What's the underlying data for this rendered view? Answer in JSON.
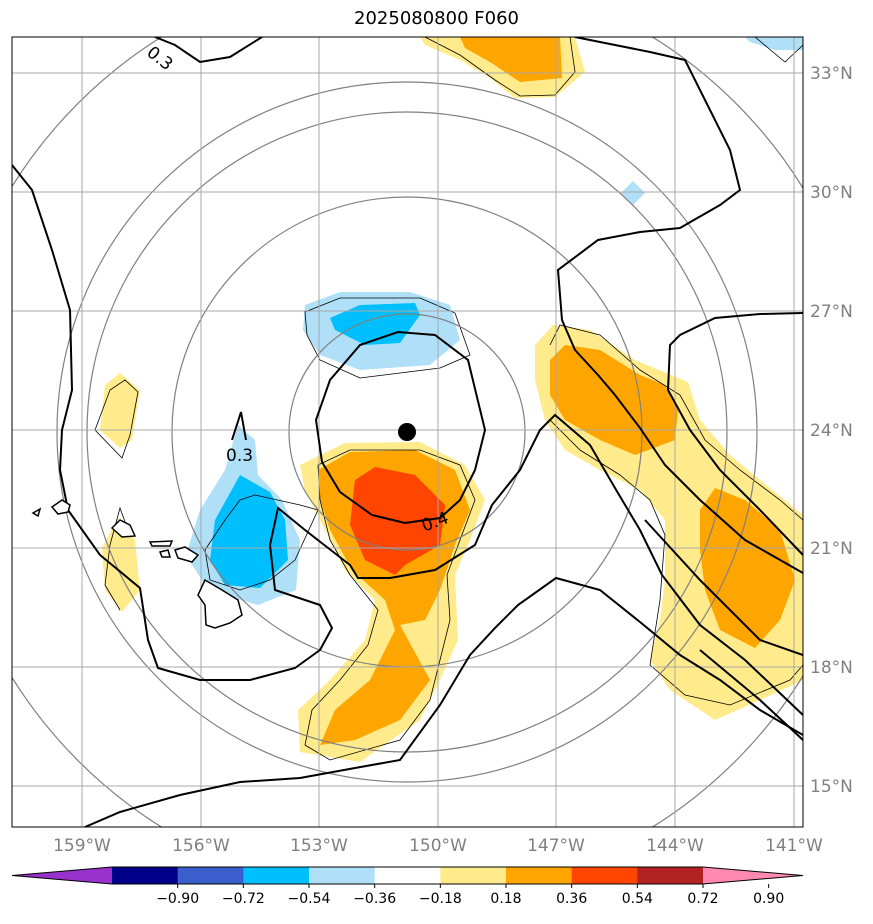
{
  "title": "2025080800 F060",
  "lon_labels": [
    "159°W",
    "156°W",
    "153°W",
    "150°W",
    "147°W",
    "144°W",
    "141°W"
  ],
  "lat_labels": [
    "33°N",
    "30°N",
    "27°N",
    "24°N",
    "21°N",
    "18°N",
    "15°N"
  ],
  "contour_labels": [
    "0.3",
    "0.3",
    "0.4"
  ],
  "colorbar": {
    "ticks": [
      "−0.90",
      "−0.72",
      "−0.54",
      "−0.36",
      "−0.18",
      "0.18",
      "0.36",
      "0.54",
      "0.72",
      "0.90"
    ],
    "colors": [
      "#9932cc",
      "#00008b",
      "#3a5fcd",
      "#00bfff",
      "#b0e0f8",
      "#ffffff",
      "#ffeb8c",
      "#ffa500",
      "#ff4500",
      "#b22222",
      "#ff89b0"
    ]
  },
  "center_marker": "storm-center"
}
